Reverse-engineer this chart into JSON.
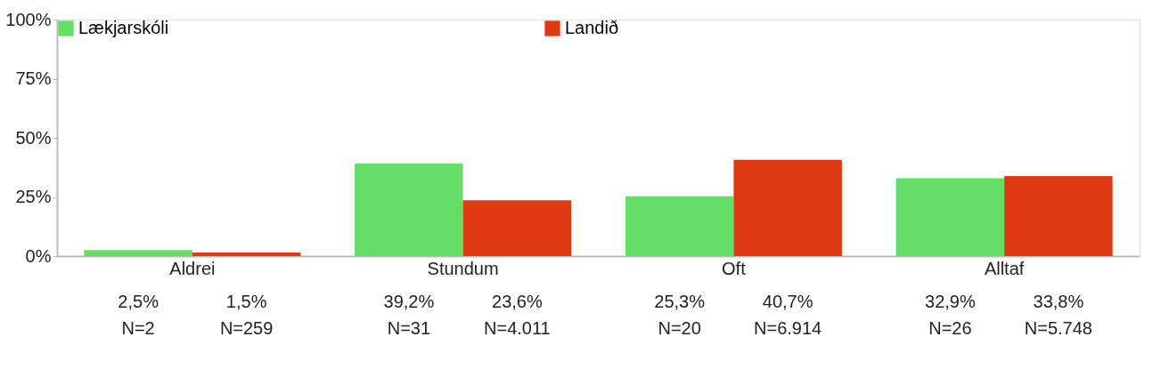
{
  "chart_data": {
    "type": "bar",
    "categories": [
      "Aldrei",
      "Stundum",
      "Oft",
      "Alltaf"
    ],
    "series": [
      {
        "name": "Lækjarskóli",
        "color": "#66dd66",
        "values": [
          2.5,
          39.2,
          25.3,
          32.9
        ],
        "value_labels": [
          "2,5%\nN=2",
          "39,2%\nN=31",
          "25,3%\nN=20",
          "32,9%\nN=26"
        ]
      },
      {
        "name": "Landið",
        "color": "#dd3a14",
        "values": [
          1.5,
          23.6,
          40.7,
          33.8
        ],
        "value_labels": [
          "1,5%\nN=259",
          "23,6%\nN=4.011",
          "40,7%\nN=6.914",
          "33,8%\nN=5.748"
        ]
      }
    ],
    "ylim": [
      0,
      100
    ],
    "yticks": [
      {
        "value": 0,
        "label": "0%"
      },
      {
        "value": 25,
        "label": "25%"
      },
      {
        "value": 50,
        "label": "50%"
      },
      {
        "value": 75,
        "label": "75%"
      },
      {
        "value": 100,
        "label": "100%"
      }
    ],
    "grid": false,
    "legend": "top left"
  }
}
